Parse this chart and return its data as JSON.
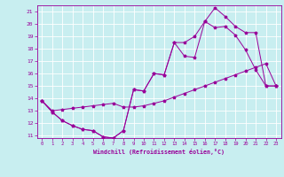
{
  "xlabel": "Windchill (Refroidissement éolien,°C)",
  "background_color": "#c8eef0",
  "line_color": "#990099",
  "grid_color": "#ffffff",
  "xlim": [
    -0.5,
    23.5
  ],
  "ylim": [
    10.8,
    21.5
  ],
  "yticks": [
    11,
    12,
    13,
    14,
    15,
    16,
    17,
    18,
    19,
    20,
    21
  ],
  "xticks": [
    0,
    1,
    2,
    3,
    4,
    5,
    6,
    7,
    8,
    9,
    10,
    11,
    12,
    13,
    14,
    15,
    16,
    17,
    18,
    19,
    20,
    21,
    22,
    23
  ],
  "line1_x": [
    0,
    1,
    2,
    3,
    4,
    5,
    6,
    7,
    8,
    9,
    10,
    11,
    12,
    13,
    14,
    15,
    16,
    17,
    18,
    19,
    20,
    21,
    22,
    23
  ],
  "line1_y": [
    13.8,
    12.9,
    12.2,
    11.8,
    11.5,
    11.4,
    10.9,
    10.8,
    11.4,
    14.7,
    14.6,
    16.0,
    15.9,
    18.5,
    18.5,
    19.0,
    20.2,
    19.7,
    19.8,
    19.1,
    17.9,
    16.3,
    15.0,
    15.0
  ],
  "line2_x": [
    0,
    1,
    2,
    3,
    4,
    5,
    6,
    7,
    8,
    9,
    10,
    11,
    12,
    13,
    14,
    15,
    16,
    17,
    18,
    19,
    20,
    21,
    22,
    23
  ],
  "line2_y": [
    13.8,
    12.9,
    12.2,
    11.8,
    11.5,
    11.4,
    10.9,
    10.8,
    11.4,
    14.7,
    14.6,
    16.0,
    15.9,
    18.5,
    17.4,
    17.3,
    20.2,
    21.3,
    20.6,
    19.8,
    19.3,
    19.3,
    15.0,
    15.0
  ],
  "line3_x": [
    0,
    1,
    2,
    3,
    4,
    5,
    6,
    7,
    8,
    9,
    10,
    11,
    12,
    13,
    14,
    15,
    16,
    17,
    18,
    19,
    20,
    21,
    22,
    23
  ],
  "line3_y": [
    13.8,
    13.0,
    13.1,
    13.2,
    13.3,
    13.4,
    13.5,
    13.6,
    13.3,
    13.3,
    13.4,
    13.6,
    13.8,
    14.1,
    14.4,
    14.7,
    15.0,
    15.3,
    15.6,
    15.9,
    16.2,
    16.5,
    16.8,
    15.0
  ],
  "figsize": [
    3.2,
    2.0
  ],
  "dpi": 100
}
